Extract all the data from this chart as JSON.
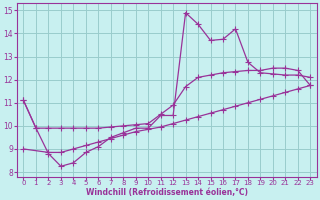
{
  "xlabel": "Windchill (Refroidissement éolien,°C)",
  "bg_color": "#c8f0f0",
  "line_color": "#993399",
  "grid_color": "#99cccc",
  "xlim": [
    -0.5,
    23.5
  ],
  "ylim": [
    7.8,
    15.3
  ],
  "xticks": [
    0,
    1,
    2,
    3,
    4,
    5,
    6,
    7,
    8,
    9,
    10,
    11,
    12,
    13,
    14,
    15,
    16,
    17,
    18,
    19,
    20,
    21,
    22,
    23
  ],
  "yticks": [
    8,
    9,
    10,
    11,
    12,
    13,
    14,
    15
  ],
  "line1_x": [
    0,
    1,
    2,
    3,
    4,
    5,
    6,
    7,
    8,
    9,
    10,
    11,
    12,
    13,
    14,
    15,
    16,
    17,
    18,
    19,
    20,
    21,
    22,
    23
  ],
  "line1_y": [
    11.1,
    9.9,
    8.8,
    8.25,
    8.4,
    8.85,
    9.1,
    9.5,
    9.7,
    9.9,
    9.9,
    10.45,
    10.45,
    14.9,
    14.4,
    13.7,
    13.75,
    14.2,
    12.75,
    12.3,
    12.25,
    12.2,
    12.2,
    12.1
  ],
  "line2_x": [
    0,
    1,
    2,
    3,
    4,
    5,
    6,
    7,
    8,
    9,
    10,
    11,
    12,
    13,
    14,
    15,
    16,
    17,
    18,
    19,
    20,
    21,
    22,
    23
  ],
  "line2_y": [
    11.1,
    9.9,
    9.9,
    9.9,
    9.9,
    9.9,
    9.9,
    9.95,
    10.0,
    10.05,
    10.1,
    10.5,
    10.9,
    11.7,
    12.1,
    12.2,
    12.3,
    12.35,
    12.4,
    12.4,
    12.5,
    12.5,
    12.4,
    11.75
  ],
  "line3_x": [
    0,
    2,
    3,
    4,
    5,
    6,
    7,
    8,
    9,
    10,
    11,
    12,
    13,
    14,
    15,
    16,
    17,
    18,
    19,
    20,
    21,
    22,
    23
  ],
  "line3_y": [
    9.0,
    8.85,
    8.85,
    9.0,
    9.15,
    9.3,
    9.45,
    9.6,
    9.75,
    9.85,
    9.95,
    10.1,
    10.25,
    10.4,
    10.55,
    10.7,
    10.85,
    11.0,
    11.15,
    11.3,
    11.45,
    11.6,
    11.75
  ],
  "tick_fontsize": 5.5,
  "xlabel_fontsize": 5.5
}
